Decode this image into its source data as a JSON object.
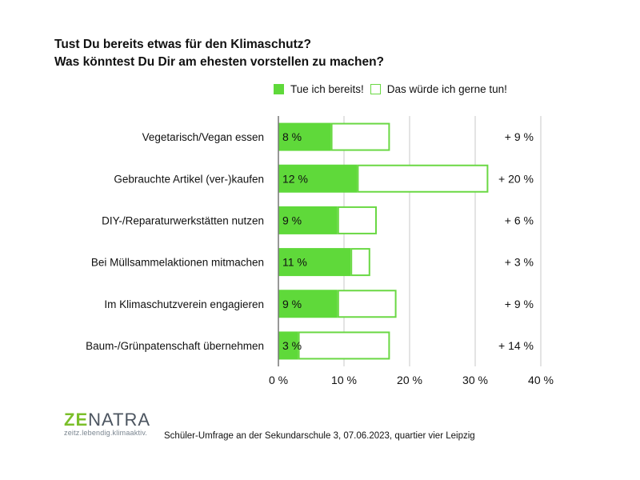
{
  "title": {
    "line1": "Tust Du bereits etwas für den Klimaschutz?",
    "line2": "Was könntest Du Dir am ehesten vorstellen zu machen?"
  },
  "colors": {
    "green": "#5fd93a",
    "outline": "#6ad844",
    "grid": "#c8c8c8",
    "axis": "#777777"
  },
  "chart_data": {
    "type": "bar",
    "orientation": "horizontal",
    "stacked": true,
    "title": "Tust Du bereits etwas für den Klimaschutz? Was könntest Du Dir am ehesten vorstellen zu machen?",
    "xlabel": "",
    "ylabel": "",
    "xlim": [
      0,
      40
    ],
    "xticks": [
      0,
      10,
      20,
      30,
      40
    ],
    "xtick_labels": [
      "0 %",
      "10 %",
      "20 %",
      "30 %",
      "40 %"
    ],
    "grid": true,
    "legend_position": "top",
    "categories": [
      "Vegetarisch/Vegan essen",
      "Gebrauchte Artikel (ver-)kaufen",
      "DIY-/Reparaturwerkstätten nutzen",
      "Bei Müllsammelaktionen mitmachen",
      "Im Klimaschutzverein engagieren",
      "Baum-/Grünpatenschaft übernehmen"
    ],
    "series": [
      {
        "name": "Tue ich bereits!",
        "values": [
          8,
          12,
          9,
          11,
          9,
          3
        ],
        "labels": [
          "8 %",
          "12 %",
          "9 %",
          "11 %",
          "9 %",
          "3 %"
        ]
      },
      {
        "name": "Das würde ich gerne tun!",
        "values": [
          9,
          20,
          6,
          3,
          9,
          14
        ],
        "labels": [
          "+ 9 %",
          "+ 20 %",
          "+ 6 %",
          "+ 3 %",
          "+ 9 %",
          "+ 14 %"
        ]
      }
    ]
  },
  "footer": {
    "logo_ze": "ZE",
    "logo_rest": "NATRA",
    "logo_tagline": "zeitz.lebendig.klimaaktiv.",
    "source": "Schüler-Umfrage an der Sekundarschule 3, 07.06.2023, quartier vier Leipzig"
  }
}
